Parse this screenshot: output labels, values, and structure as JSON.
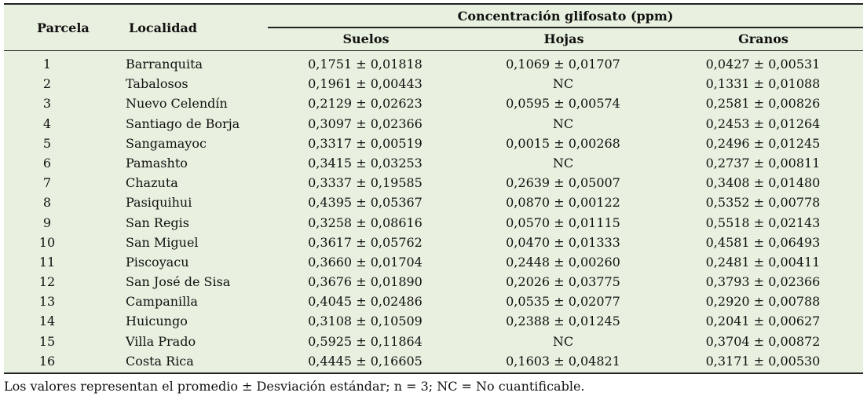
{
  "table": {
    "headers": {
      "parcela": "Parcela",
      "localidad": "Localidad",
      "group": "Concentración glifosato (ppm)",
      "suelos": "Suelos",
      "hojas": "Hojas",
      "granos": "Granos"
    },
    "rows": [
      {
        "parcela": "1",
        "localidad": "Barranquita",
        "suelos": "0,1751 ± 0,01818",
        "hojas": "0,1069 ± 0,01707",
        "granos": "0,0427 ± 0,00531"
      },
      {
        "parcela": "2",
        "localidad": "Tabalosos",
        "suelos": "0,1961 ± 0,00443",
        "hojas": "NC",
        "granos": "0,1331 ± 0,01088"
      },
      {
        "parcela": "3",
        "localidad": "Nuevo Celendín",
        "suelos": "0,2129 ± 0,02623",
        "hojas": "0,0595 ± 0,00574",
        "granos": "0,2581 ± 0,00826"
      },
      {
        "parcela": "4",
        "localidad": "Santiago de Borja",
        "suelos": "0,3097 ± 0,02366",
        "hojas": "NC",
        "granos": "0,2453 ± 0,01264"
      },
      {
        "parcela": "5",
        "localidad": "Sangamayoc",
        "suelos": "0,3317 ± 0,00519",
        "hojas": "0,0015 ± 0,00268",
        "granos": "0,2496 ± 0,01245"
      },
      {
        "parcela": "6",
        "localidad": "Pamashto",
        "suelos": "0,3415 ± 0,03253",
        "hojas": "NC",
        "granos": "0,2737 ± 0,00811"
      },
      {
        "parcela": "7",
        "localidad": "Chazuta",
        "suelos": "0,3337 ± 0,19585",
        "hojas": "0,2639 ± 0,05007",
        "granos": "0,3408 ± 0,01480"
      },
      {
        "parcela": "8",
        "localidad": "Pasiquihui",
        "suelos": "0,4395 ± 0,05367",
        "hojas": "0,0870 ± 0,00122",
        "granos": "0,5352 ± 0,00778"
      },
      {
        "parcela": "9",
        "localidad": "San Regis",
        "suelos": "0,3258 ± 0,08616",
        "hojas": "0,0570 ± 0,01115",
        "granos": "0,5518 ± 0,02143"
      },
      {
        "parcela": "10",
        "localidad": "San Miguel",
        "suelos": "0,3617 ± 0,05762",
        "hojas": "0,0470 ± 0,01333",
        "granos": "0,4581 ± 0,06493"
      },
      {
        "parcela": "11",
        "localidad": "Piscoyacu",
        "suelos": "0,3660 ± 0,01704",
        "hojas": "0,2448 ± 0,00260",
        "granos": "0,2481 ± 0,00411"
      },
      {
        "parcela": "12",
        "localidad": "San José de Sisa",
        "suelos": "0,3676 ± 0,01890",
        "hojas": "0,2026 ± 0,03775",
        "granos": "0,3793 ± 0,02366"
      },
      {
        "parcela": "13",
        "localidad": "Campanilla",
        "suelos": "0,4045 ± 0,02486",
        "hojas": "0,0535 ± 0,02077",
        "granos": "0,2920 ± 0,00788"
      },
      {
        "parcela": "14",
        "localidad": "Huicungo",
        "suelos": "0,3108 ± 0,10509",
        "hojas": "0,2388 ± 0,01245",
        "granos": "0,2041 ± 0,00627"
      },
      {
        "parcela": "15",
        "localidad": "Villa Prado",
        "suelos": "0,5925 ± 0,11864",
        "hojas": "NC",
        "granos": "0,3704 ± 0,00872"
      },
      {
        "parcela": "16",
        "localidad": "Costa Rica",
        "suelos": "0,4445 ± 0,16605",
        "hojas": "0,1603 ± 0,04821",
        "granos": "0,3171 ± 0,00530"
      }
    ]
  },
  "footnote": "Los valores representan el promedio ± Desviación estándar; n = 3; NC = No cuantificable."
}
